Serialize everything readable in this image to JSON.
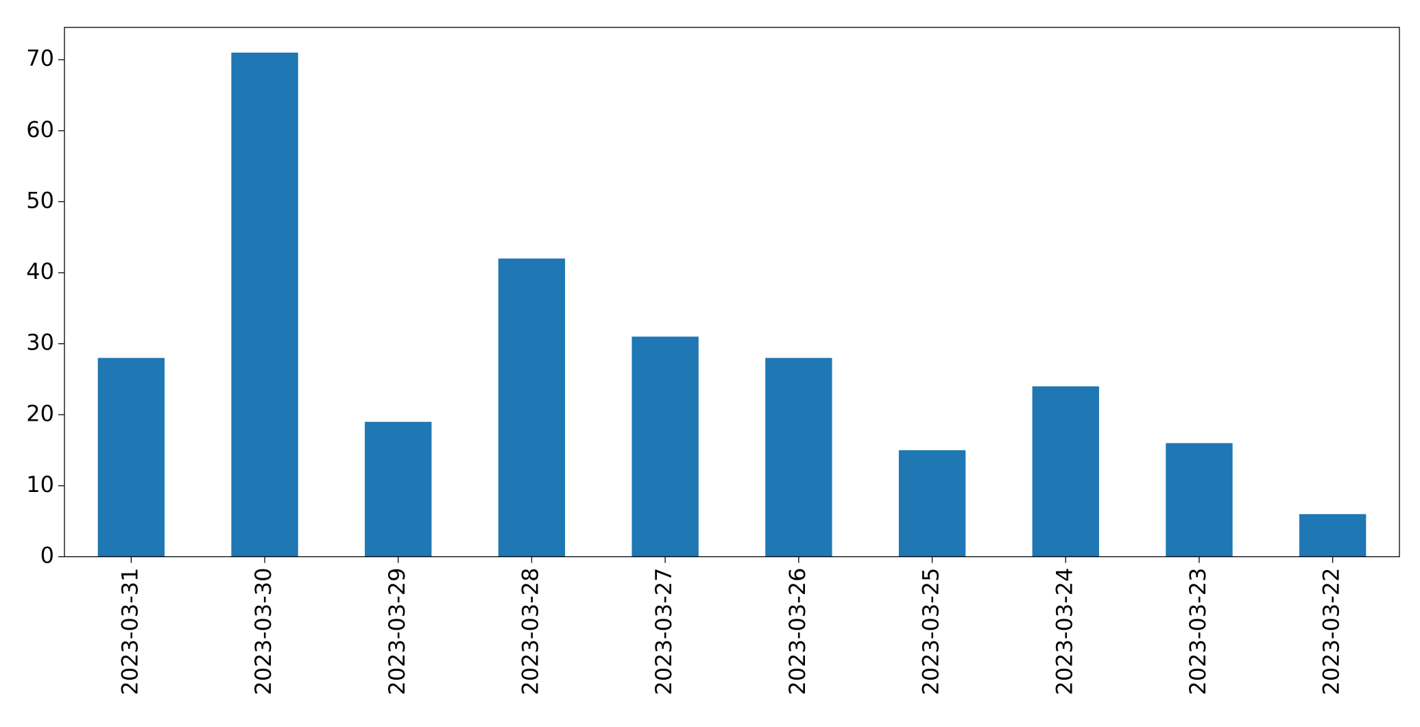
{
  "chart_data": {
    "type": "bar",
    "categories": [
      "2023-03-31",
      "2023-03-30",
      "2023-03-29",
      "2023-03-28",
      "2023-03-27",
      "2023-03-26",
      "2023-03-25",
      "2023-03-24",
      "2023-03-23",
      "2023-03-22"
    ],
    "values": [
      28,
      71,
      19,
      42,
      31,
      28,
      15,
      24,
      16,
      6
    ],
    "color": "#1f77b4",
    "ylim": [
      0,
      74.55
    ],
    "yticks": [
      0,
      10,
      20,
      30,
      40,
      50,
      60,
      70
    ],
    "grid": false
  }
}
